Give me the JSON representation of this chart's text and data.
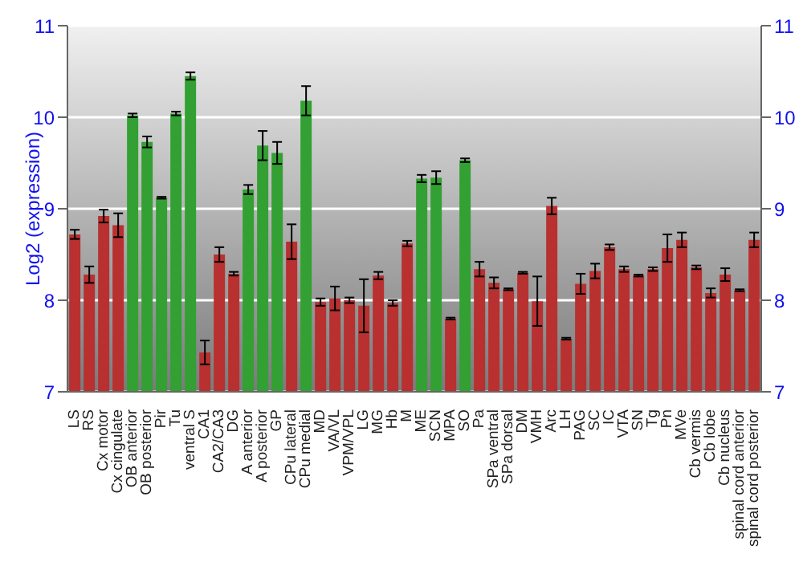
{
  "chart_data": {
    "type": "bar",
    "ylabel": "Log2 (expression)",
    "categories": [
      "LS",
      "RS",
      "Cx motor",
      "Cx cingulate",
      "OB anterior",
      "OB posterior",
      "Pir",
      "Tu",
      "ventral S",
      "CA1",
      "CA2/CA3",
      "DG",
      "A anterior",
      "A posterior",
      "GP",
      "CPu lateral",
      "CPu medial",
      "MD",
      "VA/VL",
      "VPM/VPL",
      "LG",
      "MG",
      "Hb",
      "M",
      "ME",
      "SCN",
      "MPA",
      "SO",
      "Pa",
      "SPa ventral",
      "SPa dorsal",
      "DM",
      "VMH",
      "Arc",
      "LH",
      "PAG",
      "SC",
      "IC",
      "VTA",
      "SN",
      "Tg",
      "Pn",
      "MVe",
      "Cb vermis",
      "Cb lobe",
      "Cb nucleus",
      "spinal cord anterior",
      "spinal cord posterior"
    ],
    "values": [
      8.72,
      8.28,
      8.92,
      8.82,
      10.02,
      9.73,
      9.12,
      10.04,
      10.45,
      7.43,
      8.5,
      8.29,
      9.21,
      9.69,
      9.61,
      8.64,
      10.18,
      7.98,
      8.02,
      8.0,
      7.94,
      8.27,
      7.97,
      8.62,
      9.33,
      9.34,
      7.8,
      9.53,
      8.34,
      8.19,
      8.12,
      8.3,
      7.99,
      9.03,
      7.58,
      8.18,
      8.32,
      8.58,
      8.34,
      8.27,
      8.34,
      8.57,
      8.66,
      8.36,
      8.08,
      8.28,
      8.11,
      8.66
    ],
    "errors": [
      0.05,
      0.09,
      0.07,
      0.13,
      0.02,
      0.06,
      0.01,
      0.02,
      0.04,
      0.13,
      0.08,
      0.02,
      0.05,
      0.16,
      0.12,
      0.19,
      0.16,
      0.04,
      0.13,
      0.03,
      0.29,
      0.04,
      0.03,
      0.03,
      0.04,
      0.07,
      0.01,
      0.02,
      0.08,
      0.06,
      0.01,
      0.01,
      0.27,
      0.09,
      0.01,
      0.11,
      0.08,
      0.03,
      0.03,
      0.01,
      0.02,
      0.15,
      0.08,
      0.02,
      0.05,
      0.07,
      0.01,
      0.08
    ],
    "colors": [
      "#b83030",
      "#b83030",
      "#b83030",
      "#b83030",
      "#32a032",
      "#32a032",
      "#32a032",
      "#32a032",
      "#32a032",
      "#b83030",
      "#b83030",
      "#b83030",
      "#32a032",
      "#32a032",
      "#32a032",
      "#b83030",
      "#32a032",
      "#b83030",
      "#b83030",
      "#b83030",
      "#b83030",
      "#b83030",
      "#b83030",
      "#b83030",
      "#32a032",
      "#32a032",
      "#b83030",
      "#32a032",
      "#b83030",
      "#b83030",
      "#b83030",
      "#b83030",
      "#b83030",
      "#b83030",
      "#b83030",
      "#b83030",
      "#b83030",
      "#b83030",
      "#b83030",
      "#b83030",
      "#b83030",
      "#b83030",
      "#b83030",
      "#b83030",
      "#b83030",
      "#b83030",
      "#b83030",
      "#b83030"
    ],
    "ylim": [
      7,
      11
    ],
    "yticks": [
      7,
      8,
      9,
      10,
      11
    ],
    "y2lim": [
      7,
      11
    ],
    "y2ticks": [
      7,
      8,
      9,
      10,
      11
    ],
    "grid": "y"
  }
}
